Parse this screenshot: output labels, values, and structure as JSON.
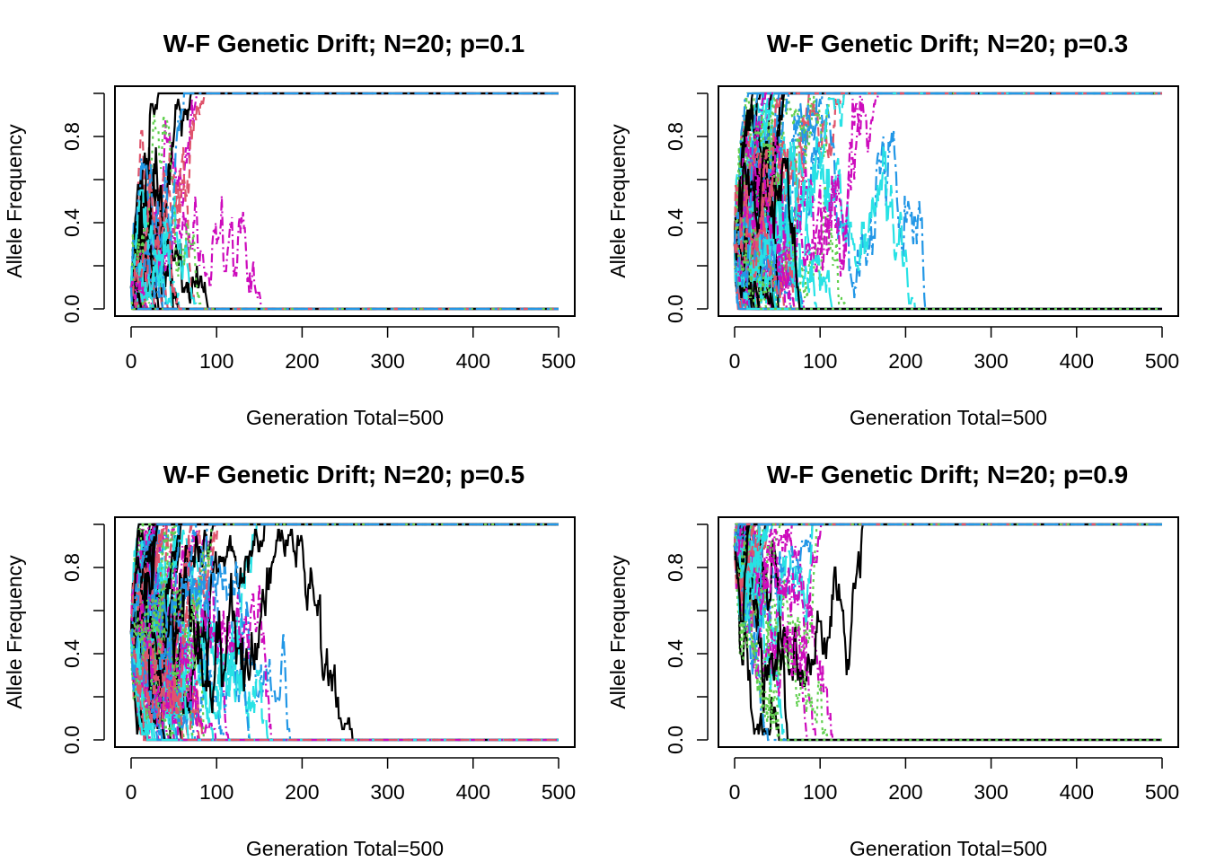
{
  "figure": {
    "colors": [
      "#000000",
      "#DF536B",
      "#61D04F",
      "#2297E6",
      "#28E2E5",
      "#CD0BBC"
    ]
  },
  "chart_data": [
    {
      "type": "line",
      "title": "W-F Genetic Drift; N=20; p=0.1",
      "xlabel": "Generation Total=500",
      "ylabel": "Allele Frequency",
      "xlim": [
        0,
        500
      ],
      "ylim": [
        0,
        1
      ],
      "xticks": [
        "0",
        "100",
        "200",
        "300",
        "400",
        "500"
      ],
      "yticks": [
        "0.0",
        "0.4",
        "0.8"
      ],
      "grid": false,
      "legend": "none",
      "series_count": 100,
      "initial_frequency": 0.1,
      "population_size": 20,
      "generations": 500
    },
    {
      "type": "line",
      "title": "W-F Genetic Drift; N=20; p=0.3",
      "xlabel": "Generation Total=500",
      "ylabel": "Allele Frequency",
      "xlim": [
        0,
        500
      ],
      "ylim": [
        0,
        1
      ],
      "xticks": [
        "0",
        "100",
        "200",
        "300",
        "400",
        "500"
      ],
      "yticks": [
        "0.0",
        "0.4",
        "0.8"
      ],
      "grid": false,
      "legend": "none",
      "series_count": 100,
      "initial_frequency": 0.3,
      "population_size": 20,
      "generations": 500
    },
    {
      "type": "line",
      "title": "W-F Genetic Drift; N=20; p=0.5",
      "xlabel": "Generation Total=500",
      "ylabel": "Allele Frequency",
      "xlim": [
        0,
        500
      ],
      "ylim": [
        0,
        1
      ],
      "xticks": [
        "0",
        "100",
        "200",
        "300",
        "400",
        "500"
      ],
      "yticks": [
        "0.0",
        "0.4",
        "0.8"
      ],
      "grid": false,
      "legend": "none",
      "series_count": 100,
      "initial_frequency": 0.5,
      "population_size": 20,
      "generations": 500
    },
    {
      "type": "line",
      "title": "W-F Genetic Drift; N=20; p=0.9",
      "xlabel": "Generation Total=500",
      "ylabel": "Allele Frequency",
      "xlim": [
        0,
        500
      ],
      "ylim": [
        0,
        1
      ],
      "xticks": [
        "0",
        "100",
        "200",
        "300",
        "400",
        "500"
      ],
      "yticks": [
        "0.0",
        "0.4",
        "0.8"
      ],
      "grid": false,
      "legend": "none",
      "series_count": 100,
      "initial_frequency": 0.9,
      "population_size": 20,
      "generations": 500
    }
  ]
}
